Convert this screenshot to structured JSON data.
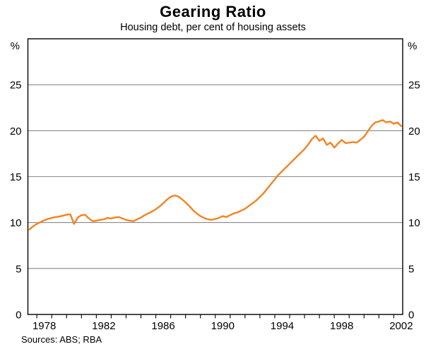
{
  "header": {
    "title": "Gearing Ratio",
    "subtitle": "Housing debt, per cent of housing assets"
  },
  "footer": {
    "sources": "Sources: ABS; RBA"
  },
  "chart_data": {
    "type": "line",
    "title": "Gearing Ratio",
    "subtitle": "Housing debt, per cent of housing assets",
    "unit_label": "%",
    "ylabel": "per cent of housing assets",
    "ylim": [
      0,
      30
    ],
    "yticks": [
      0,
      5,
      10,
      15,
      20,
      25
    ],
    "gridlines": [
      5,
      10,
      15,
      20,
      25
    ],
    "x_range": [
      1977.4,
      2002.6
    ],
    "x_tick_interval": 1,
    "x_label_years": [
      1978,
      1982,
      1986,
      1990,
      1994,
      1998,
      2002
    ],
    "grid": true,
    "legend": "none",
    "line_color": "#F58220",
    "grid_color": "#666666",
    "frame_color": "#000000",
    "series": [
      {
        "name": "Housing debt per cent of housing assets",
        "x": [
          1977.5,
          1977.75,
          1978.0,
          1978.25,
          1978.5,
          1978.75,
          1979.0,
          1979.25,
          1979.5,
          1979.75,
          1980.0,
          1980.25,
          1980.5,
          1980.75,
          1981.0,
          1981.25,
          1981.5,
          1981.75,
          1982.0,
          1982.25,
          1982.5,
          1982.75,
          1983.0,
          1983.25,
          1983.5,
          1983.75,
          1984.0,
          1984.25,
          1984.5,
          1984.75,
          1985.0,
          1985.25,
          1985.5,
          1985.75,
          1986.0,
          1986.25,
          1986.5,
          1986.75,
          1987.0,
          1987.25,
          1987.5,
          1987.75,
          1988.0,
          1988.25,
          1988.5,
          1988.75,
          1989.0,
          1989.25,
          1989.5,
          1989.75,
          1990.0,
          1990.25,
          1990.5,
          1990.75,
          1991.0,
          1991.25,
          1991.5,
          1991.75,
          1992.0,
          1992.25,
          1992.5,
          1992.75,
          1993.0,
          1993.25,
          1993.5,
          1993.75,
          1994.0,
          1994.25,
          1994.5,
          1994.75,
          1995.0,
          1995.25,
          1995.5,
          1995.75,
          1996.0,
          1996.25,
          1996.5,
          1996.75,
          1997.0,
          1997.25,
          1997.5,
          1997.75,
          1998.0,
          1998.25,
          1998.5,
          1998.75,
          1999.0,
          1999.25,
          1999.5,
          1999.75,
          2000.0,
          2000.25,
          2000.5,
          2000.75,
          2001.0,
          2001.25,
          2001.5,
          2001.75,
          2002.0,
          2002.25,
          2002.5
        ],
        "values": [
          9.25,
          9.6,
          9.85,
          10.05,
          10.25,
          10.4,
          10.5,
          10.6,
          10.65,
          10.75,
          10.85,
          10.9,
          9.85,
          10.55,
          10.8,
          10.85,
          10.45,
          10.15,
          10.2,
          10.3,
          10.35,
          10.5,
          10.45,
          10.55,
          10.6,
          10.45,
          10.3,
          10.2,
          10.15,
          10.35,
          10.55,
          10.8,
          11.0,
          11.2,
          11.45,
          11.75,
          12.1,
          12.5,
          12.8,
          12.95,
          12.85,
          12.55,
          12.2,
          11.8,
          11.35,
          11.0,
          10.7,
          10.5,
          10.35,
          10.3,
          10.4,
          10.5,
          10.7,
          10.6,
          10.8,
          11.0,
          11.1,
          11.3,
          11.5,
          11.8,
          12.1,
          12.4,
          12.8,
          13.2,
          13.7,
          14.2,
          14.7,
          15.2,
          15.6,
          16.0,
          16.4,
          16.8,
          17.2,
          17.6,
          18.0,
          18.5,
          19.1,
          19.45,
          18.9,
          19.15,
          18.45,
          18.7,
          18.15,
          18.6,
          19.0,
          18.65,
          18.7,
          18.75,
          18.7,
          19.0,
          19.35,
          19.9,
          20.5,
          20.9,
          21.0,
          21.15,
          20.9,
          21.0,
          20.75,
          20.9,
          20.5
        ]
      }
    ]
  }
}
